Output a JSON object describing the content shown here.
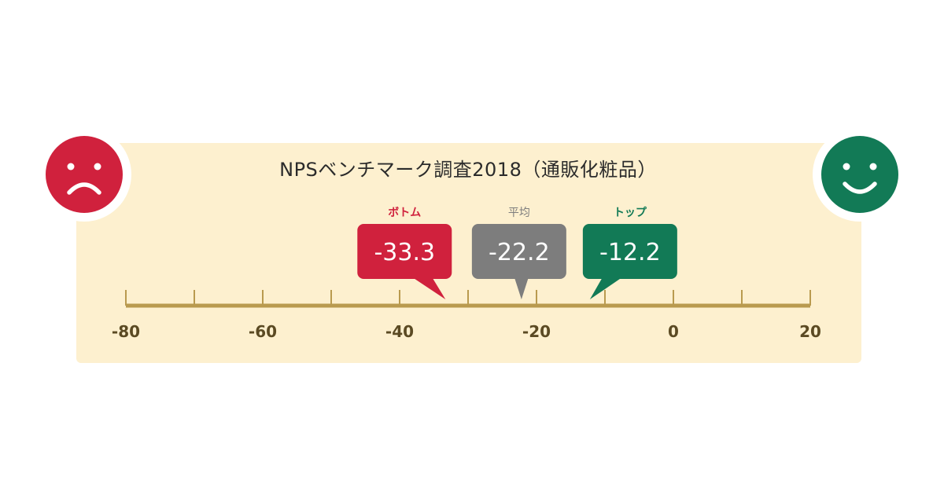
{
  "chart_data": {
    "type": "scatter",
    "title": "NPSベンチマーク調査2018（通販化粧品）",
    "xlim": [
      -80,
      20
    ],
    "x_ticks": [
      -80,
      -60,
      -40,
      -20,
      0,
      20
    ],
    "x_tick_labels": [
      "-80",
      "-60",
      "-40",
      "-20",
      "0",
      "20"
    ],
    "minor_tick_step": 10,
    "markers": [
      {
        "label": "ボトム",
        "value": -33.3,
        "value_text": "-33.3",
        "color": "#d0213d"
      },
      {
        "label": "平均",
        "value": -22.2,
        "value_text": "-22.2",
        "color": "#7d7d7d"
      },
      {
        "label": "トップ",
        "value": -12.2,
        "value_text": "-12.2",
        "color": "#127a56"
      }
    ]
  },
  "faces": {
    "sad": {
      "icon": "sad-face-icon",
      "color": "#d0213d"
    },
    "happy": {
      "icon": "happy-face-icon",
      "color": "#127a56"
    }
  },
  "axis_color": "#b99a4f",
  "tick_label_color": "#5b4a23"
}
